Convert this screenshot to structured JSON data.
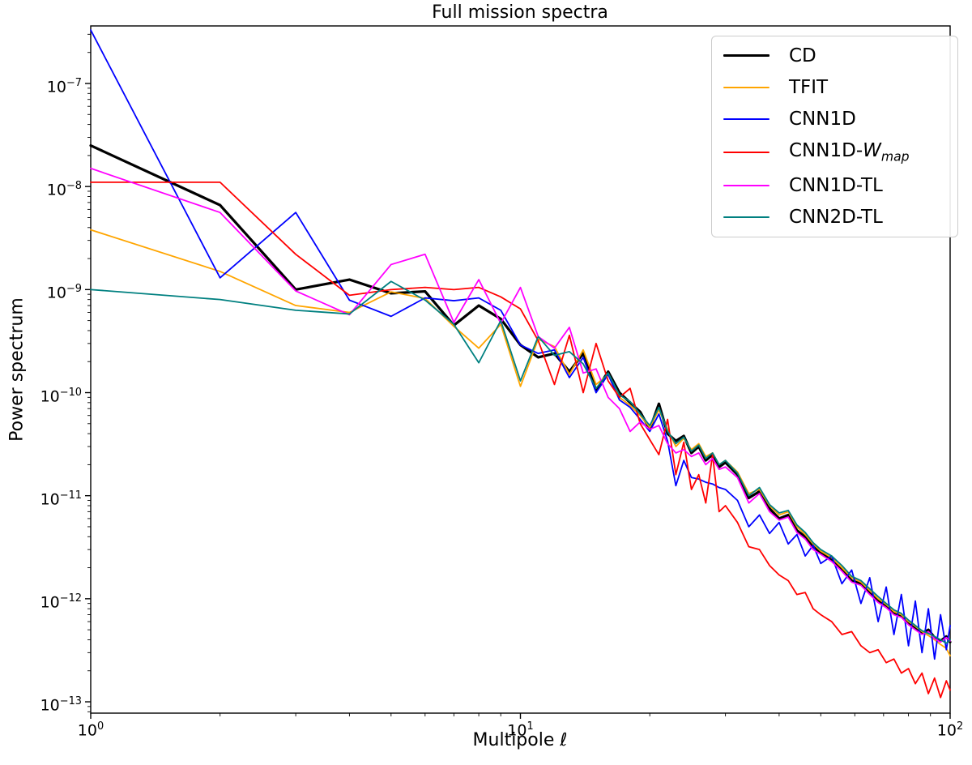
{
  "title": "Full mission spectra",
  "axes": {
    "xlabel": "Multipole ℓ",
    "ylabel": "Power spectrum",
    "x_tick_labels": [
      "10^0",
      "10^1",
      "10^2"
    ],
    "x_tick_exponents": [
      0,
      1,
      2
    ],
    "y_tick_labels": [
      "10^-7",
      "10^-8",
      "10^-9",
      "10^-10",
      "10^-11",
      "10^-12",
      "10^-13"
    ],
    "y_tick_exponents": [
      -7,
      -8,
      -9,
      -10,
      -11,
      -12,
      -13
    ],
    "xscale": "log",
    "yscale": "log"
  },
  "legend": {
    "position": "upper right",
    "entries": [
      {
        "label": "CD",
        "color": "#000000",
        "line_width": 3.5
      },
      {
        "label": "TFIT",
        "color": "#FFA500",
        "line_width": 2
      },
      {
        "label": "CNN1D",
        "color": "#0000FF",
        "line_width": 2
      },
      {
        "label": "CNN1D-W_map",
        "color": "#FF0000",
        "line_width": 2,
        "math": {
          "prefix": "CNN1D-",
          "italic": "W",
          "subscript": "map"
        }
      },
      {
        "label": "CNN1D-TL",
        "color": "#FF00FF",
        "line_width": 2
      },
      {
        "label": "CNN2D-TL",
        "color": "#008080",
        "line_width": 2
      }
    ]
  },
  "chart_data": {
    "type": "line",
    "title": "Full mission spectra",
    "xlabel": "Multipole ℓ",
    "ylabel": "Power spectrum",
    "xscale": "log",
    "yscale": "log",
    "xlim": [
      1,
      100
    ],
    "ylim": [
      7.8e-14,
      3.6e-07
    ],
    "grid": false,
    "legend_position": "upper right",
    "x": [
      1,
      2,
      3,
      4,
      5,
      6,
      7,
      8,
      9,
      10,
      11,
      12,
      13,
      14,
      15,
      16,
      17,
      18,
      19,
      20,
      21,
      22,
      23,
      24,
      25,
      26,
      27,
      28,
      29,
      30,
      32,
      34,
      36,
      38,
      40,
      42,
      44,
      46,
      48,
      50,
      53,
      56,
      59,
      62,
      65,
      68,
      71,
      74,
      77,
      80,
      83,
      86,
      89,
      92,
      95,
      98,
      100
    ],
    "series": [
      {
        "name": "CD",
        "color": "#000000",
        "line_width": 3.2,
        "values": [
          2.5e-08,
          6.6e-09,
          1e-09,
          1.25e-09,
          9.2e-10,
          9.6e-10,
          4.5e-10,
          7e-10,
          5.2e-10,
          2.9e-10,
          2.2e-10,
          2.4e-10,
          1.6e-10,
          2.4e-10,
          1.05e-10,
          1.6e-10,
          1e-10,
          8e-11,
          6.5e-11,
          4.4e-11,
          7.8e-11,
          4e-11,
          3.4e-11,
          3.8e-11,
          2.6e-11,
          3e-11,
          2.2e-11,
          2.5e-11,
          1.9e-11,
          2.1e-11,
          1.6e-11,
          9.5e-12,
          1.1e-11,
          7.5e-12,
          6e-12,
          6.5e-12,
          4.6e-12,
          4e-12,
          3.2e-12,
          2.8e-12,
          2.4e-12,
          1.9e-12,
          1.5e-12,
          1.4e-12,
          1.15e-12,
          9.5e-13,
          8.5e-13,
          7.2e-13,
          6.8e-13,
          5.8e-13,
          5.2e-13,
          4.6e-13,
          5e-13,
          4.2e-13,
          3.9e-13,
          4.3e-13,
          3.8e-13
        ]
      },
      {
        "name": "TFIT",
        "color": "#FFA500",
        "line_width": 1.8,
        "values": [
          3.8e-09,
          1.5e-09,
          7e-10,
          6e-10,
          9.5e-10,
          8.2e-10,
          4.4e-10,
          2.7e-10,
          4.6e-10,
          1.15e-10,
          3.3e-10,
          2.8e-10,
          1.5e-10,
          2.6e-10,
          1.2e-10,
          1.5e-10,
          9e-11,
          7.5e-11,
          6e-11,
          4.6e-11,
          6.8e-11,
          4.4e-11,
          3e-11,
          3.6e-11,
          2.8e-11,
          3.2e-11,
          2.4e-11,
          2.6e-11,
          2e-11,
          2.2e-11,
          1.7e-11,
          1.05e-11,
          1.15e-11,
          8e-12,
          6.5e-12,
          7e-12,
          5e-12,
          4.2e-12,
          3.4e-12,
          2.9e-12,
          2.5e-12,
          2e-12,
          1.6e-12,
          1.45e-12,
          1.2e-12,
          1e-12,
          8.8e-13,
          7.5e-13,
          7e-13,
          6e-13,
          5.4e-13,
          4.8e-13,
          4.4e-13,
          4e-13,
          3.6e-13,
          3.3e-13,
          2.8e-13
        ]
      },
      {
        "name": "CNN1D",
        "color": "#0000FF",
        "line_width": 1.8,
        "values": [
          3.3e-07,
          1.3e-09,
          5.6e-09,
          7.9e-10,
          5.5e-10,
          8.3e-10,
          7.8e-10,
          8.3e-10,
          6.3e-10,
          2.9e-10,
          2.4e-10,
          2.6e-10,
          1.4e-10,
          2.2e-10,
          1e-10,
          1.5e-10,
          8.5e-11,
          7.2e-11,
          5.5e-11,
          4.2e-11,
          6.2e-11,
          3.4e-11,
          1.25e-11,
          2.2e-11,
          1.5e-11,
          1.45e-11,
          1.35e-11,
          1.3e-11,
          1.2e-11,
          1.15e-11,
          9e-12,
          5e-12,
          6.5e-12,
          4.3e-12,
          5.5e-12,
          3.4e-12,
          4.2e-12,
          2.6e-12,
          3.3e-12,
          2.2e-12,
          2.6e-12,
          1.4e-12,
          1.9e-12,
          9e-13,
          1.6e-12,
          6e-13,
          1.3e-12,
          4.5e-13,
          1.1e-12,
          3.5e-13,
          9.5e-13,
          3e-13,
          8e-13,
          2.6e-13,
          7e-13,
          3.2e-13,
          5.5e-13
        ]
      },
      {
        "name": "CNN1D-W_map",
        "color": "#FF0000",
        "line_width": 1.8,
        "values": [
          1.1e-08,
          1.1e-08,
          2.2e-09,
          8.8e-10,
          1e-09,
          1.05e-09,
          1e-09,
          1.05e-09,
          8.5e-10,
          6.5e-10,
          3.2e-10,
          1.2e-10,
          3.6e-10,
          1e-10,
          3e-10,
          1.3e-10,
          9e-11,
          1.1e-10,
          5e-11,
          3.5e-11,
          2.5e-11,
          5.5e-11,
          1.6e-11,
          3.3e-11,
          1.15e-11,
          1.6e-11,
          8.5e-12,
          2.5e-11,
          7e-12,
          8e-12,
          5.5e-12,
          3.2e-12,
          3e-12,
          2.1e-12,
          1.7e-12,
          1.5e-12,
          1.1e-12,
          1.15e-12,
          8e-13,
          7e-13,
          6e-13,
          4.5e-13,
          4.8e-13,
          3.5e-13,
          3e-13,
          3.2e-13,
          2.4e-13,
          2.6e-13,
          1.9e-13,
          2.1e-13,
          1.5e-13,
          1.9e-13,
          1.2e-13,
          1.7e-13,
          1.1e-13,
          1.6e-13,
          1.3e-13
        ]
      },
      {
        "name": "CNN1D-TL",
        "color": "#FF00FF",
        "line_width": 1.8,
        "values": [
          1.5e-08,
          5.6e-09,
          9.7e-10,
          5.7e-10,
          1.75e-09,
          2.2e-09,
          4.8e-10,
          1.25e-09,
          4.7e-10,
          1.05e-09,
          3.5e-10,
          2.7e-10,
          4.3e-10,
          1.55e-10,
          1.7e-10,
          9e-11,
          7e-11,
          4.2e-11,
          5.2e-11,
          4.4e-11,
          4.8e-11,
          3.2e-11,
          2.6e-11,
          2.8e-11,
          2.4e-11,
          2.6e-11,
          2e-11,
          2.3e-11,
          1.8e-11,
          1.9e-11,
          1.5e-11,
          8.5e-12,
          1.05e-11,
          7e-12,
          5.8e-12,
          6.2e-12,
          4.4e-12,
          3.8e-12,
          3e-12,
          2.7e-12,
          2.3e-12,
          1.85e-12,
          1.45e-12,
          1.35e-12,
          1.1e-12,
          9.2e-13,
          8.2e-13,
          7e-13,
          6.6e-13,
          5.6e-13,
          5e-13,
          4.5e-13,
          4.8e-13,
          4.1e-13,
          3.8e-13,
          4.2e-13,
          3.9e-13
        ]
      },
      {
        "name": "CNN2D-TL",
        "color": "#008080",
        "line_width": 1.8,
        "values": [
          1e-09,
          8e-10,
          6.3e-10,
          5.8e-10,
          1.2e-09,
          7.9e-10,
          4.6e-10,
          1.95e-10,
          5e-10,
          1.3e-10,
          3.5e-10,
          2.3e-10,
          2.5e-10,
          1.9e-10,
          1.1e-10,
          1.55e-10,
          9.5e-11,
          8.2e-11,
          6.2e-11,
          4.8e-11,
          7.2e-11,
          4.2e-11,
          3.2e-11,
          3.7e-11,
          2.7e-11,
          3.1e-11,
          2.3e-11,
          2.6e-11,
          2e-11,
          2.2e-11,
          1.65e-11,
          1e-11,
          1.2e-11,
          8.2e-12,
          6.8e-12,
          7.2e-12,
          5.2e-12,
          4.4e-12,
          3.5e-12,
          3e-12,
          2.6e-12,
          2.1e-12,
          1.65e-12,
          1.5e-12,
          1.25e-12,
          1.05e-12,
          9e-13,
          7.8e-13,
          7.2e-13,
          6.2e-13,
          5.5e-13,
          4.9e-13,
          4.6e-13,
          4.3e-13,
          4e-13,
          3.7e-13,
          4e-13
        ]
      }
    ]
  }
}
